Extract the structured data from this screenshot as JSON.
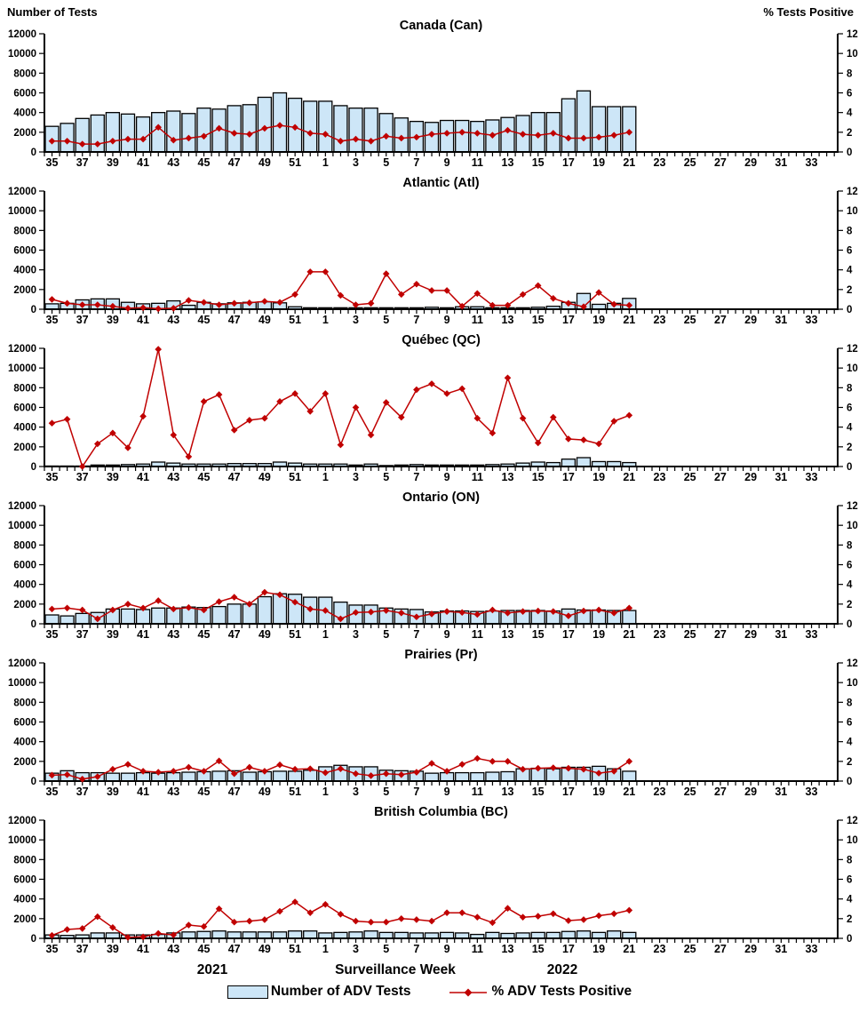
{
  "page": {
    "left_axis_title": "Number of Tests",
    "right_axis_title": "% Tests Positive",
    "x_axis_label": "Surveillance Week",
    "year_left": "2021",
    "year_right": "2022",
    "legend": {
      "bar_label": "Number of ADV Tests",
      "line_label": "% ADV Tests Positive"
    }
  },
  "colors": {
    "bar_fill": "#CDE6F7",
    "bar_stroke": "#000000",
    "line": "#C00000",
    "axis": "#000000"
  },
  "chart_data": {
    "type": "bar",
    "subtype": "bar+line multipanel, dual y-axes",
    "weeks": [
      35,
      36,
      37,
      38,
      39,
      40,
      41,
      42,
      43,
      44,
      45,
      46,
      47,
      48,
      49,
      50,
      51,
      52,
      1,
      2,
      3,
      4,
      5,
      6,
      7,
      8,
      9,
      10,
      11,
      12,
      13,
      14,
      15,
      16,
      17,
      18,
      19,
      20,
      21,
      22,
      23,
      24,
      25,
      26,
      27,
      28,
      29,
      30,
      31,
      32,
      33
    ],
    "x_tick_labels_shown": "odd weeks only",
    "left_axis": {
      "title": "Number of Tests",
      "range": [
        0,
        12000
      ],
      "tick_step": 2000
    },
    "right_axis": {
      "title": "% Tests Positive",
      "range": [
        0,
        12
      ],
      "tick_step": 2
    },
    "panels": [
      {
        "id": "canada",
        "title": "Canada (Can)",
        "series": [
          {
            "name": "Number of ADV Tests",
            "type": "bar",
            "axis": "left",
            "values": [
              2600,
              2900,
              3400,
              3750,
              4000,
              3850,
              3550,
              4000,
              4150,
              3900,
              4450,
              4350,
              4700,
              4800,
              5550,
              6000,
              5450,
              5150,
              5150,
              4700,
              4450,
              4450,
              3900,
              3450,
              3100,
              3000,
              3200,
              3200,
              3100,
              3250,
              3500,
              3700,
              4000,
              4000,
              5400,
              6200,
              4600,
              4600,
              4600,
              null,
              null,
              null,
              null,
              null,
              null,
              null,
              null,
              null,
              null,
              null,
              null
            ]
          },
          {
            "name": "% ADV Tests Positive",
            "type": "line",
            "axis": "right",
            "values": [
              1.1,
              1.1,
              0.8,
              0.8,
              1.1,
              1.3,
              1.3,
              2.5,
              1.2,
              1.4,
              1.6,
              2.4,
              1.9,
              1.8,
              2.4,
              2.7,
              2.5,
              1.9,
              1.8,
              1.1,
              1.3,
              1.1,
              1.6,
              1.4,
              1.5,
              1.8,
              1.9,
              2.0,
              1.9,
              1.7,
              2.2,
              1.8,
              1.7,
              1.9,
              1.4,
              1.4,
              1.5,
              1.7,
              2.0,
              null,
              null,
              null,
              null,
              null,
              null,
              null,
              null,
              null,
              null,
              null,
              null
            ]
          }
        ]
      },
      {
        "id": "atlantic",
        "title": "Atlantic (Atl)",
        "series": [
          {
            "name": "Number of ADV Tests",
            "type": "bar",
            "axis": "left",
            "values": [
              550,
              600,
              950,
              1050,
              1050,
              700,
              550,
              600,
              850,
              400,
              700,
              550,
              650,
              700,
              750,
              650,
              250,
              150,
              150,
              150,
              150,
              150,
              150,
              150,
              150,
              200,
              150,
              250,
              250,
              150,
              150,
              150,
              200,
              300,
              700,
              1600,
              500,
              600,
              1100,
              null,
              null,
              null,
              null,
              null,
              null,
              null,
              null,
              null,
              null,
              null,
              null
            ]
          },
          {
            "name": "% ADV Tests Positive",
            "type": "line",
            "axis": "right",
            "values": [
              1.0,
              0.6,
              0.45,
              0.45,
              0.3,
              0.1,
              0.15,
              0.05,
              0.1,
              0.9,
              0.7,
              0.45,
              0.6,
              0.65,
              0.8,
              0.7,
              1.5,
              3.8,
              3.8,
              1.4,
              0.45,
              0.6,
              3.6,
              1.5,
              2.55,
              1.9,
              1.9,
              0.3,
              1.6,
              0.4,
              0.4,
              1.5,
              2.4,
              1.1,
              0.6,
              0.25,
              1.7,
              0.5,
              0.4,
              null,
              null,
              null,
              null,
              null,
              null,
              null,
              null,
              null,
              null,
              null,
              null
            ]
          }
        ]
      },
      {
        "id": "quebec",
        "title": "Québec (QC)",
        "series": [
          {
            "name": "Number of ADV Tests",
            "type": "bar",
            "axis": "left",
            "values": [
              50,
              50,
              50,
              150,
              150,
              200,
              250,
              450,
              350,
              250,
              250,
              250,
              300,
              300,
              300,
              450,
              350,
              250,
              250,
              250,
              150,
              250,
              100,
              150,
              200,
              150,
              150,
              150,
              150,
              200,
              250,
              350,
              450,
              400,
              750,
              900,
              500,
              500,
              400,
              null,
              null,
              null,
              null,
              null,
              null,
              null,
              null,
              null,
              null,
              null,
              null
            ]
          },
          {
            "name": "% ADV Tests Positive",
            "type": "line",
            "axis": "right",
            "values": [
              4.4,
              4.8,
              0.0,
              2.3,
              3.4,
              1.9,
              5.1,
              11.9,
              3.2,
              1.0,
              6.6,
              7.3,
              3.7,
              4.7,
              4.9,
              6.6,
              7.4,
              5.6,
              7.4,
              2.2,
              6.0,
              3.2,
              6.5,
              5.0,
              7.8,
              8.4,
              7.4,
              7.9,
              4.9,
              3.4,
              9.0,
              4.9,
              2.4,
              5.0,
              2.8,
              2.7,
              2.3,
              4.6,
              5.2,
              null,
              null,
              null,
              null,
              null,
              null,
              null,
              null,
              null,
              null,
              null,
              null
            ]
          }
        ]
      },
      {
        "id": "ontario",
        "title": "Ontario (ON)",
        "series": [
          {
            "name": "Number of ADV Tests",
            "type": "bar",
            "axis": "left",
            "values": [
              900,
              800,
              1050,
              1150,
              1500,
              1500,
              1450,
              1600,
              1600,
              1700,
              1650,
              1750,
              2000,
              2000,
              2750,
              3050,
              3000,
              2700,
              2700,
              2200,
              1900,
              1900,
              1600,
              1500,
              1450,
              1200,
              1300,
              1300,
              1250,
              1300,
              1350,
              1350,
              1350,
              1300,
              1500,
              1400,
              1400,
              1350,
              1350,
              null,
              null,
              null,
              null,
              null,
              null,
              null,
              null,
              null,
              null,
              null,
              null
            ]
          },
          {
            "name": "% ADV Tests Positive",
            "type": "line",
            "axis": "right",
            "values": [
              1.5,
              1.6,
              1.4,
              0.5,
              1.4,
              2.0,
              1.6,
              2.35,
              1.5,
              1.65,
              1.4,
              2.25,
              2.7,
              2.0,
              3.2,
              2.95,
              2.2,
              1.5,
              1.35,
              0.5,
              1.15,
              1.2,
              1.35,
              1.1,
              0.7,
              1.0,
              1.25,
              1.15,
              0.95,
              1.4,
              1.1,
              1.25,
              1.3,
              1.25,
              0.8,
              1.3,
              1.4,
              1.1,
              1.6,
              null,
              null,
              null,
              null,
              null,
              null,
              null,
              null,
              null,
              null,
              null,
              null
            ]
          }
        ]
      },
      {
        "id": "prairies",
        "title": "Prairies (Pr)",
        "series": [
          {
            "name": "Number of ADV Tests",
            "type": "bar",
            "axis": "left",
            "values": [
              800,
              1050,
              850,
              850,
              800,
              800,
              850,
              800,
              850,
              900,
              950,
              1000,
              1050,
              900,
              950,
              1000,
              1000,
              1100,
              1450,
              1600,
              1450,
              1450,
              1100,
              1050,
              1000,
              800,
              850,
              850,
              850,
              900,
              950,
              1250,
              1300,
              1250,
              1400,
              1400,
              1500,
              1250,
              1000,
              null,
              null,
              null,
              null,
              null,
              null,
              null,
              null,
              null,
              null,
              null,
              null
            ]
          },
          {
            "name": "% ADV Tests Positive",
            "type": "line",
            "axis": "right",
            "values": [
              0.6,
              0.65,
              0.2,
              0.45,
              1.2,
              1.7,
              1.0,
              0.9,
              1.0,
              1.4,
              1.0,
              2.05,
              0.75,
              1.4,
              1.0,
              1.65,
              1.2,
              1.25,
              0.85,
              1.25,
              0.75,
              0.55,
              0.75,
              0.65,
              0.9,
              1.8,
              1.0,
              1.7,
              2.3,
              2.0,
              2.0,
              1.2,
              1.3,
              1.35,
              1.3,
              1.2,
              0.8,
              1.0,
              2.0,
              null,
              null,
              null,
              null,
              null,
              null,
              null,
              null,
              null,
              null,
              null,
              null
            ]
          }
        ]
      },
      {
        "id": "bc",
        "title": "British Columbia (BC)",
        "series": [
          {
            "name": "Number of ADV Tests",
            "type": "bar",
            "axis": "left",
            "values": [
              350,
              300,
              350,
              550,
              550,
              350,
              350,
              400,
              550,
              650,
              700,
              750,
              650,
              650,
              650,
              650,
              750,
              750,
              550,
              600,
              650,
              750,
              600,
              600,
              550,
              550,
              600,
              550,
              400,
              600,
              500,
              550,
              600,
              600,
              700,
              750,
              600,
              750,
              600,
              null,
              null,
              null,
              null,
              null,
              null,
              null,
              null,
              null,
              null,
              null,
              null
            ]
          },
          {
            "name": "% ADV Tests Positive",
            "type": "line",
            "axis": "right",
            "values": [
              0.3,
              0.9,
              1.0,
              2.2,
              1.1,
              0.1,
              0.15,
              0.5,
              0.35,
              1.35,
              1.2,
              3.0,
              1.65,
              1.75,
              1.9,
              2.75,
              3.7,
              2.6,
              3.45,
              2.45,
              1.75,
              1.65,
              1.65,
              2.0,
              1.9,
              1.75,
              2.6,
              2.6,
              2.15,
              1.6,
              3.05,
              2.15,
              2.25,
              2.5,
              1.8,
              1.9,
              2.3,
              2.5,
              2.85,
              null,
              null,
              null,
              null,
              null,
              null,
              null,
              null,
              null,
              null,
              null,
              null
            ]
          }
        ]
      }
    ]
  }
}
